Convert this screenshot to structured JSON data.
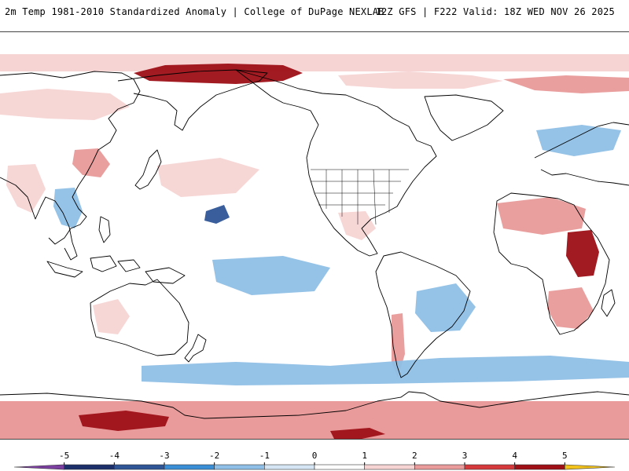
{
  "header": {
    "title": "2m Temp 1981-2010 Standardized Anomaly | College of DuPage NEXLAB",
    "run_info": "12Z GFS | F222 Valid: 18Z WED NOV 26 2025"
  },
  "map": {
    "projection": "Plate Carree (Pacific-centered)",
    "field": "2m temperature standardized anomaly",
    "anomaly_patches": [
      {
        "region": "Arctic Bering",
        "value": 4.2
      },
      {
        "region": "Arctic northern Canada",
        "value": 1.5
      },
      {
        "region": "Arctic Scandinavia",
        "value": 2.0
      },
      {
        "region": "Siberia Kazakhstan",
        "value": 1.0
      },
      {
        "region": "China south",
        "value": 2.2
      },
      {
        "region": "Southeast Asia",
        "value": -1.5
      },
      {
        "region": "India",
        "value": 1.6
      },
      {
        "region": "Central Pacific jet",
        "value": -3.5
      },
      {
        "region": "Northwest Pacific",
        "value": 1.4
      },
      {
        "region": "Tropical Pacific south",
        "value": -1.8
      },
      {
        "region": "North America central",
        "value": 0.8
      },
      {
        "region": "Mexico",
        "value": 1.2
      },
      {
        "region": "South America east",
        "value": -1.5
      },
      {
        "region": "Andes Chile",
        "value": 2.5
      },
      {
        "region": "Sahel",
        "value": 2.6
      },
      {
        "region": "East Africa",
        "value": 4.0
      },
      {
        "region": "South Africa",
        "value": 2.1
      },
      {
        "region": "Europe",
        "value": -1.6
      },
      {
        "region": "Australia west",
        "value": 1.6
      },
      {
        "region": "Southern Ocean",
        "value": -1.5
      },
      {
        "region": "Antarctica Ross sector",
        "value": 4.5
      },
      {
        "region": "Antarctica Weddell",
        "value": 2.8
      },
      {
        "region": "Antarctica Amery",
        "value": 4.3
      },
      {
        "region": "Antarctica east",
        "value": 2.5
      }
    ]
  },
  "legend": {
    "ticks": [
      "-5",
      "-4",
      "-3",
      "-2",
      "-1",
      "0",
      "1",
      "2",
      "3",
      "4",
      "5"
    ],
    "tick_values": [
      -5,
      -4,
      -3,
      -2,
      -1,
      0,
      1,
      2,
      3,
      4,
      5
    ],
    "range": [
      -6,
      6
    ],
    "bins": [
      {
        "from": -6,
        "to": -5,
        "color": "#7b3fa0"
      },
      {
        "from": -5,
        "to": -4,
        "color": "#1c2f6b"
      },
      {
        "from": -4,
        "to": -3,
        "color": "#2f5597"
      },
      {
        "from": -3,
        "to": -2,
        "color": "#3a8ed6"
      },
      {
        "from": -2,
        "to": -1,
        "color": "#8fbfe6"
      },
      {
        "from": -1,
        "to": 0,
        "color": "#d5e5f4"
      },
      {
        "from": 0,
        "to": 1,
        "color": "#ffffff"
      },
      {
        "from": 1,
        "to": 2,
        "color": "#f7d4d4"
      },
      {
        "from": 2,
        "to": 3,
        "color": "#e99a9a"
      },
      {
        "from": 3,
        "to": 4,
        "color": "#d6393b"
      },
      {
        "from": 4,
        "to": 5,
        "color": "#9e0f16"
      },
      {
        "from": 5,
        "to": 6,
        "color": "#f2c21b"
      }
    ]
  }
}
